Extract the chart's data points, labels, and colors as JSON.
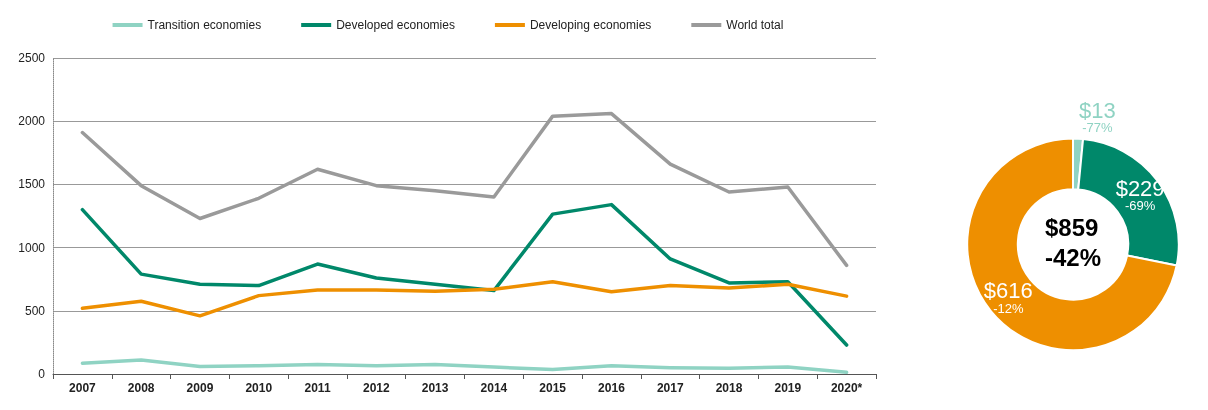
{
  "chart_data": [
    {
      "type": "line",
      "categories": [
        "2007",
        "2008",
        "2009",
        "2010",
        "2011",
        "2012",
        "2013",
        "2014",
        "2015",
        "2016",
        "2017",
        "2018",
        "2019",
        "2020*"
      ],
      "series": [
        {
          "name": "Transition economies",
          "color": "#8fd3c3",
          "values": [
            85,
            110,
            60,
            65,
            75,
            65,
            75,
            55,
            35,
            65,
            50,
            45,
            55,
            13
          ]
        },
        {
          "name": "Developed economies",
          "color": "#00886a",
          "values": [
            1300,
            790,
            710,
            700,
            870,
            760,
            710,
            660,
            1265,
            1340,
            910,
            720,
            730,
            229
          ]
        },
        {
          "name": "Developing economies",
          "color": "#ee8f00",
          "values": [
            520,
            575,
            460,
            620,
            665,
            665,
            655,
            670,
            730,
            650,
            700,
            680,
            710,
            616
          ]
        },
        {
          "name": "World total",
          "color": "#9a9a9a",
          "values": [
            1910,
            1490,
            1230,
            1390,
            1620,
            1490,
            1450,
            1400,
            2040,
            2060,
            1660,
            1440,
            1480,
            859
          ]
        }
      ],
      "ylim": [
        0,
        2500
      ],
      "yticks": [
        0,
        500,
        1000,
        1500,
        2000,
        2500
      ],
      "grid": "y",
      "legend": "top",
      "marker": "none",
      "line_style": "solid"
    },
    {
      "type": "donut",
      "categories": [
        null,
        null,
        null
      ],
      "values": [
        13,
        229,
        616
      ],
      "colors": [
        "#8fd3c3",
        "#00886a",
        "#ee8f00"
      ],
      "value_labels": [
        "$13\n-77%",
        "$229\n-69%",
        "$616\n-12%"
      ],
      "annotations": [
        "$859\n-42%"
      ]
    }
  ]
}
